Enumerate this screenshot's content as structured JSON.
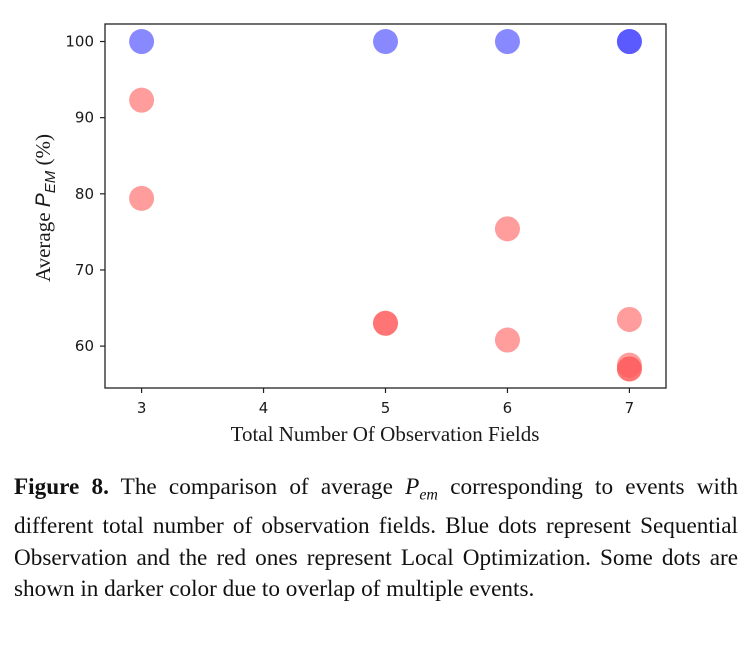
{
  "chart_data": {
    "type": "scatter",
    "xlabel": "Total Number Of Observation Fields",
    "ylabel_prefix": "Average ",
    "ylabel_symbol": "P",
    "ylabel_subscript": "EM",
    "ylabel_suffix": " (%)",
    "x_ticks": [
      3,
      4,
      5,
      6,
      7
    ],
    "y_ticks": [
      60,
      70,
      80,
      90,
      100
    ],
    "xlim": [
      2.7,
      7.3
    ],
    "ylim": [
      54.5,
      102.3
    ],
    "grid": false,
    "series": [
      {
        "color": "#3a3aff",
        "points": [
          {
            "x": 3,
            "y": 100
          },
          {
            "x": 5,
            "y": 100
          },
          {
            "x": 6,
            "y": 100
          },
          {
            "x": 7,
            "y": 100
          },
          {
            "x": 7,
            "y": 100
          }
        ]
      },
      {
        "color": "#ff5a5a",
        "points": [
          {
            "x": 3,
            "y": 92.3
          },
          {
            "x": 3,
            "y": 79.4
          },
          {
            "x": 5,
            "y": 63
          },
          {
            "x": 5,
            "y": 63
          },
          {
            "x": 6,
            "y": 75.4
          },
          {
            "x": 6,
            "y": 60.8
          },
          {
            "x": 7,
            "y": 63.5
          },
          {
            "x": 7,
            "y": 57.5
          },
          {
            "x": 7,
            "y": 57
          },
          {
            "x": 7,
            "y": 57
          }
        ]
      }
    ]
  },
  "caption": {
    "label": "Figure 8.",
    "text_before": " The comparison of average ",
    "math": "P",
    "math_sub": "em",
    "text_after": " corresponding to events with different total number of observation fields. Blue dots represent Sequential Observation and the red ones represent Local Optimization. Some dots are shown in darker color due to overlap of multiple events."
  }
}
